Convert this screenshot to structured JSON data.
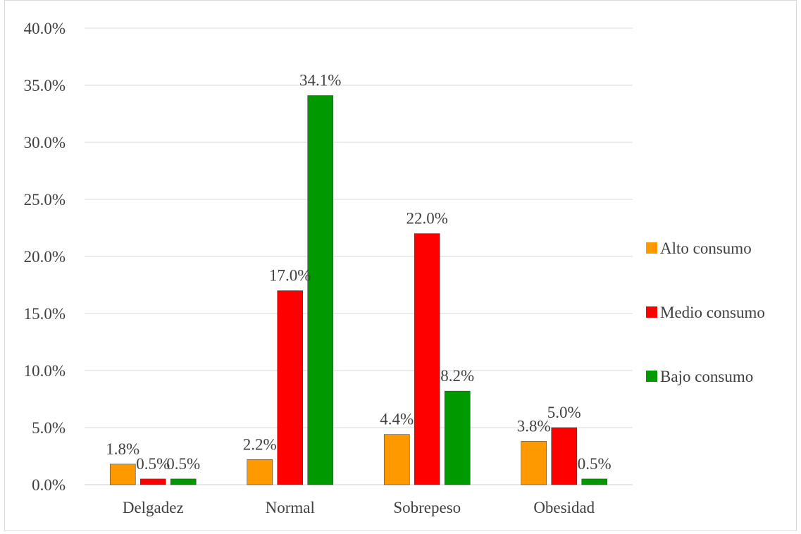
{
  "chart_data": {
    "type": "bar",
    "title": "",
    "xlabel": "",
    "ylabel": "",
    "ylim": [
      0,
      40
    ],
    "yticks": [
      "0.0%",
      "5.0%",
      "10.0%",
      "15.0%",
      "20.0%",
      "25.0%",
      "30.0%",
      "35.0%",
      "40.0%"
    ],
    "grid": true,
    "legend_position": "right",
    "categories": [
      "Delgadez",
      "Normal",
      "Sobrepeso",
      "Obesidad"
    ],
    "series": [
      {
        "name": "Alto consumo",
        "color": "#ff9900",
        "values": [
          1.8,
          2.2,
          4.4,
          3.8
        ],
        "labels": [
          "1.8%",
          "2.2%",
          "4.4%",
          "3.8%"
        ]
      },
      {
        "name": "Medio consumo",
        "color": "#ff0000",
        "values": [
          0.5,
          17.0,
          22.0,
          5.0
        ],
        "labels": [
          "0.5%",
          "17.0%",
          "22.0%",
          "5.0%"
        ]
      },
      {
        "name": "Bajo consumo",
        "color": "#009900",
        "values": [
          0.5,
          34.1,
          8.2,
          0.5
        ],
        "labels": [
          "0.5%",
          "34.1%",
          "8.2%",
          "0.5%"
        ]
      }
    ]
  }
}
